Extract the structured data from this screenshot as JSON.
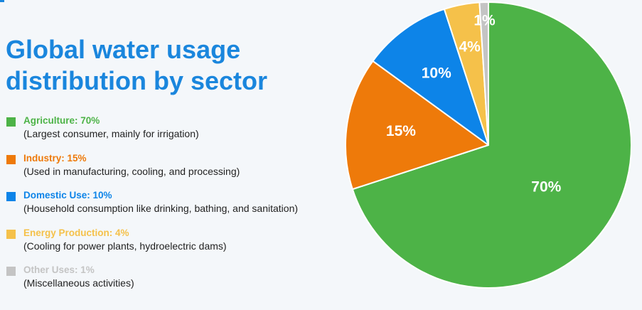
{
  "chart_data": {
    "type": "pie",
    "title": "Global water usage distribution by sector",
    "slices": [
      {
        "name": "Agriculture",
        "value": 70,
        "label": "70%",
        "color": "#4db347",
        "legend_label": "Agriculture: 70%",
        "description": "(Largest consumer, mainly for irrigation)"
      },
      {
        "name": "Industry",
        "value": 15,
        "label": "15%",
        "color": "#ee7a0a",
        "legend_label": "Industry: 15%",
        "description": "(Used in manufacturing, cooling, and processing)"
      },
      {
        "name": "Domestic Use",
        "value": 10,
        "label": "10%",
        "color": "#0d84e8",
        "legend_label": "Domestic Use: 10%",
        "description": "(Household consumption like drinking, bathing, and sanitation)"
      },
      {
        "name": "Energy Production",
        "value": 4,
        "label": "4%",
        "color": "#f5c14a",
        "legend_label": "Energy Production: 4%",
        "description": "(Cooling for power plants, hydroelectric dams)"
      },
      {
        "name": "Other Uses",
        "value": 1,
        "label": "1%",
        "color": "#c4c4c4",
        "legend_label": "Other Uses: 1%",
        "description": "(Miscellaneous activities)"
      }
    ],
    "legend_position": "left"
  }
}
